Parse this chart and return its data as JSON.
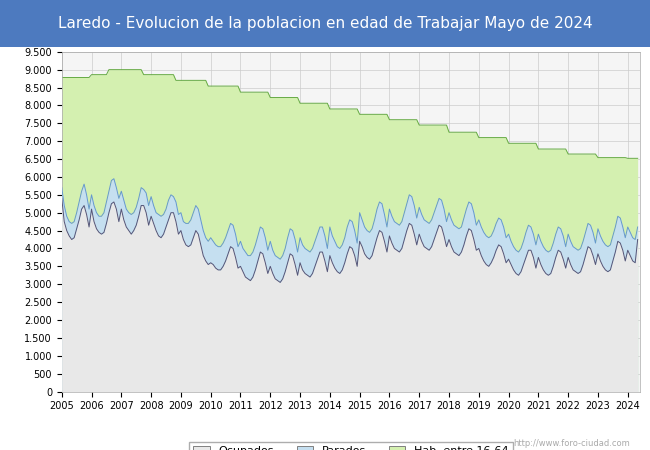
{
  "title": "Laredo - Evolucion de la poblacion en edad de Trabajar Mayo de 2024",
  "title_bg": "#4d7abf",
  "title_color": "white",
  "title_fontsize": 11,
  "color_ocupados": "#e8e8e8",
  "color_parados": "#c5dff0",
  "color_hab": "#d4f0b0",
  "line_ocupados": "#555577",
  "line_parados": "#6699cc",
  "line_hab": "#66aa44",
  "watermark": "http://www.foro-ciudad.com",
  "ylim": [
    0,
    9500
  ],
  "ytick_step": 500,
  "xlim_start": 2005,
  "xlim_end": 2024.42,
  "hab1664": [
    8780,
    8780,
    8780,
    8780,
    8780,
    8780,
    8780,
    8780,
    8780,
    8780,
    8780,
    8780,
    8860,
    8860,
    8860,
    8860,
    8860,
    8860,
    8860,
    9000,
    9000,
    9000,
    9000,
    9000,
    9000,
    9000,
    9000,
    9000,
    9000,
    9000,
    9000,
    9000,
    9000,
    8860,
    8860,
    8860,
    8860,
    8860,
    8860,
    8860,
    8860,
    8860,
    8860,
    8860,
    8860,
    8860,
    8700,
    8700,
    8700,
    8700,
    8700,
    8700,
    8700,
    8700,
    8700,
    8700,
    8700,
    8700,
    8700,
    8540,
    8540,
    8540,
    8540,
    8540,
    8540,
    8540,
    8540,
    8540,
    8540,
    8540,
    8540,
    8540,
    8370,
    8370,
    8370,
    8370,
    8370,
    8370,
    8370,
    8370,
    8370,
    8370,
    8370,
    8370,
    8220,
    8220,
    8220,
    8220,
    8220,
    8220,
    8220,
    8220,
    8220,
    8220,
    8220,
    8220,
    8060,
    8060,
    8060,
    8060,
    8060,
    8060,
    8060,
    8060,
    8060,
    8060,
    8060,
    8060,
    7900,
    7900,
    7900,
    7900,
    7900,
    7900,
    7900,
    7900,
    7900,
    7900,
    7900,
    7900,
    7750,
    7750,
    7750,
    7750,
    7750,
    7750,
    7750,
    7750,
    7750,
    7750,
    7750,
    7750,
    7600,
    7600,
    7600,
    7600,
    7600,
    7600,
    7600,
    7600,
    7600,
    7600,
    7600,
    7600,
    7450,
    7450,
    7450,
    7450,
    7450,
    7450,
    7450,
    7450,
    7450,
    7450,
    7450,
    7450,
    7250,
    7250,
    7250,
    7250,
    7250,
    7250,
    7250,
    7250,
    7250,
    7250,
    7250,
    7250,
    7100,
    7100,
    7100,
    7100,
    7100,
    7100,
    7100,
    7100,
    7100,
    7100,
    7100,
    7100,
    6940,
    6940,
    6940,
    6940,
    6940,
    6940,
    6940,
    6940,
    6940,
    6940,
    6940,
    6940,
    6780,
    6780,
    6780,
    6780,
    6780,
    6780,
    6780,
    6780,
    6780,
    6780,
    6780,
    6780,
    6640,
    6640,
    6640,
    6640,
    6640,
    6640,
    6640,
    6640,
    6640,
    6640,
    6640,
    6640,
    6540,
    6540,
    6540,
    6540,
    6540,
    6540,
    6540,
    6540,
    6540,
    6540,
    6540,
    6540,
    6520,
    6520,
    6520,
    6520,
    6520
  ],
  "parados_plus_ocupados": [
    5700,
    5200,
    4900,
    4750,
    4700,
    4750,
    5000,
    5300,
    5600,
    5800,
    5500,
    5100,
    5500,
    5200,
    5000,
    4900,
    4900,
    5000,
    5300,
    5600,
    5900,
    5950,
    5700,
    5400,
    5600,
    5350,
    5100,
    5000,
    4950,
    5000,
    5150,
    5400,
    5700,
    5650,
    5550,
    5200,
    5450,
    5200,
    5000,
    4950,
    4900,
    4950,
    5100,
    5350,
    5500,
    5450,
    5300,
    4950,
    5000,
    4750,
    4700,
    4700,
    4800,
    5000,
    5200,
    5100,
    4800,
    4500,
    4300,
    4200,
    4300,
    4200,
    4100,
    4050,
    4050,
    4150,
    4300,
    4500,
    4700,
    4650,
    4400,
    4050,
    4200,
    4000,
    3900,
    3800,
    3800,
    3900,
    4100,
    4350,
    4600,
    4550,
    4300,
    3950,
    4200,
    3950,
    3800,
    3750,
    3700,
    3800,
    4000,
    4300,
    4550,
    4500,
    4250,
    3900,
    4300,
    4100,
    4000,
    3950,
    3900,
    4000,
    4200,
    4400,
    4600,
    4600,
    4350,
    4000,
    4600,
    4350,
    4200,
    4050,
    4000,
    4100,
    4300,
    4600,
    4800,
    4750,
    4500,
    4150,
    5000,
    4800,
    4600,
    4500,
    4450,
    4550,
    4800,
    5100,
    5300,
    5250,
    4950,
    4600,
    5100,
    4900,
    4750,
    4700,
    4650,
    4750,
    5000,
    5250,
    5500,
    5450,
    5200,
    4850,
    5150,
    4950,
    4800,
    4750,
    4700,
    4800,
    5000,
    5200,
    5400,
    5350,
    5100,
    4750,
    5000,
    4800,
    4650,
    4600,
    4550,
    4600,
    4850,
    5100,
    5300,
    5250,
    5000,
    4650,
    4800,
    4600,
    4450,
    4350,
    4300,
    4350,
    4500,
    4700,
    4850,
    4800,
    4600,
    4300,
    4400,
    4200,
    4050,
    3950,
    3900,
    4000,
    4200,
    4450,
    4650,
    4600,
    4400,
    4100,
    4400,
    4200,
    4050,
    3950,
    3900,
    3950,
    4150,
    4400,
    4600,
    4550,
    4350,
    4050,
    4400,
    4200,
    4050,
    4000,
    3950,
    4000,
    4200,
    4450,
    4700,
    4650,
    4450,
    4150,
    4550,
    4350,
    4200,
    4100,
    4050,
    4100,
    4350,
    4600,
    4900,
    4850,
    4600,
    4300,
    4600,
    4450,
    4300,
    4250,
    4600
  ],
  "ocupados": [
    5400,
    4750,
    4500,
    4350,
    4250,
    4300,
    4550,
    4800,
    5100,
    5200,
    4950,
    4600,
    5100,
    4750,
    4550,
    4450,
    4400,
    4450,
    4700,
    5000,
    5250,
    5300,
    5100,
    4750,
    5100,
    4800,
    4600,
    4500,
    4400,
    4500,
    4650,
    4900,
    5200,
    5200,
    5000,
    4650,
    4900,
    4700,
    4500,
    4350,
    4300,
    4400,
    4600,
    4800,
    5000,
    5000,
    4750,
    4400,
    4500,
    4250,
    4100,
    4050,
    4100,
    4300,
    4500,
    4400,
    4100,
    3800,
    3650,
    3550,
    3600,
    3550,
    3450,
    3400,
    3400,
    3500,
    3650,
    3850,
    4050,
    4000,
    3750,
    3450,
    3500,
    3350,
    3200,
    3150,
    3100,
    3200,
    3400,
    3650,
    3900,
    3850,
    3600,
    3300,
    3500,
    3300,
    3150,
    3100,
    3050,
    3150,
    3350,
    3600,
    3850,
    3800,
    3550,
    3250,
    3600,
    3400,
    3300,
    3250,
    3200,
    3300,
    3500,
    3700,
    3900,
    3900,
    3650,
    3350,
    3800,
    3600,
    3450,
    3350,
    3300,
    3400,
    3600,
    3850,
    4050,
    4000,
    3800,
    3500,
    4200,
    4050,
    3850,
    3750,
    3700,
    3800,
    4050,
    4300,
    4500,
    4450,
    4200,
    3900,
    4350,
    4150,
    4000,
    3950,
    3900,
    4000,
    4250,
    4500,
    4700,
    4650,
    4400,
    4100,
    4400,
    4200,
    4050,
    4000,
    3950,
    4050,
    4250,
    4450,
    4650,
    4600,
    4350,
    4050,
    4250,
    4050,
    3900,
    3850,
    3800,
    3900,
    4100,
    4350,
    4550,
    4500,
    4250,
    3950,
    4000,
    3800,
    3650,
    3550,
    3500,
    3600,
    3750,
    3950,
    4100,
    4050,
    3850,
    3600,
    3700,
    3550,
    3400,
    3300,
    3250,
    3350,
    3550,
    3750,
    3950,
    3950,
    3750,
    3450,
    3750,
    3550,
    3400,
    3300,
    3250,
    3300,
    3500,
    3750,
    3950,
    3900,
    3700,
    3450,
    3750,
    3550,
    3400,
    3350,
    3300,
    3350,
    3550,
    3800,
    4050,
    4000,
    3800,
    3550,
    3850,
    3650,
    3500,
    3400,
    3350,
    3400,
    3650,
    3900,
    4200,
    4150,
    3950,
    3650,
    3950,
    3800,
    3650,
    3600,
    4250
  ]
}
